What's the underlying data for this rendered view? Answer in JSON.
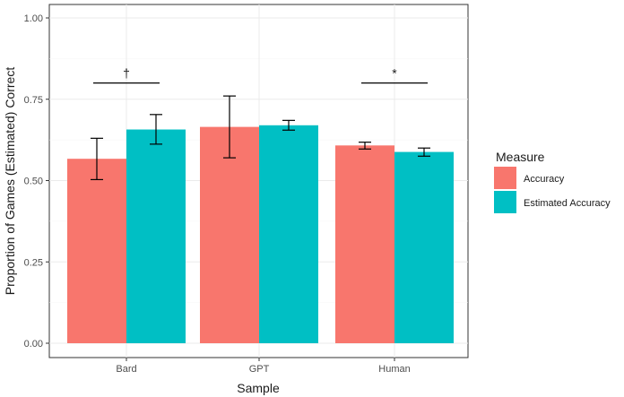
{
  "chart_data": {
    "type": "bar",
    "xlabel": "Sample",
    "ylabel": "Proportion of Games (Estimated) Correct",
    "ylim": [
      0,
      1
    ],
    "yticks": [
      "0.00",
      "0.25",
      "0.50",
      "0.75",
      "1.00"
    ],
    "categories": [
      "Bard",
      "GPT",
      "Human"
    ],
    "legend": {
      "title": "Measure",
      "position": "right"
    },
    "series": [
      {
        "name": "Accuracy",
        "color": "#F8766D",
        "values": [
          0.567,
          0.665,
          0.608
        ],
        "err_low": [
          0.503,
          0.57,
          0.597
        ],
        "err_high": [
          0.63,
          0.76,
          0.618
        ]
      },
      {
        "name": "Estimated Accuracy",
        "color": "#00BFC4",
        "values": [
          0.657,
          0.67,
          0.588
        ],
        "err_low": [
          0.612,
          0.655,
          0.575
        ],
        "err_high": [
          0.703,
          0.685,
          0.6
        ]
      }
    ],
    "grid": true,
    "significance": [
      {
        "category": "Bard",
        "label": "†",
        "y": 0.8
      },
      {
        "category": "Human",
        "label": "*",
        "y": 0.8
      }
    ]
  }
}
